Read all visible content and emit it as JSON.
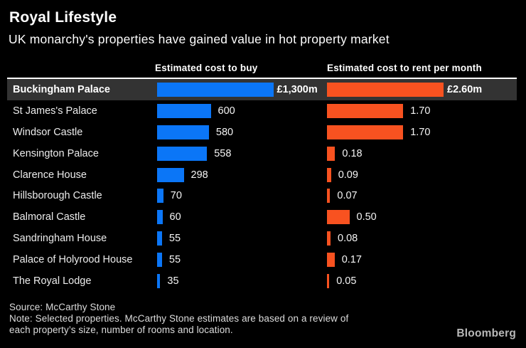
{
  "title": "Royal Lifestyle",
  "subtitle": "UK monarchy's properties have gained value in hot property market",
  "columns": {
    "buy": "Estimated cost to buy",
    "rent": "Estimated cost to rent per month"
  },
  "chart_data": {
    "type": "bar",
    "orientation": "horizontal",
    "title": "Royal Lifestyle",
    "subtitle": "UK monarchy's properties have gained value in hot property market",
    "categories": [
      "Buckingham Palace",
      "St James's Palace",
      "Windsor Castle",
      "Kensington Palace",
      "Clarence House",
      "Hillsborough Castle",
      "Balmoral Castle",
      "Sandringham House",
      "Palace of Holyrood House",
      "The Royal Lodge"
    ],
    "highlighted_category": "Buckingham Palace",
    "grid": false,
    "legend_position": "none",
    "series": [
      {
        "name": "Estimated cost to buy",
        "unit": "£m",
        "color": "#0b76f7",
        "axis_range": [
          0,
          1300
        ],
        "values": [
          1300,
          600,
          580,
          558,
          298,
          70,
          60,
          55,
          55,
          35
        ],
        "labels": [
          "£1,300m",
          "600",
          "580",
          "558",
          "298",
          "70",
          "60",
          "55",
          "55",
          "35"
        ]
      },
      {
        "name": "Estimated cost to rent per month",
        "unit": "£m",
        "color": "#f85220",
        "axis_range": [
          0,
          2.6
        ],
        "values": [
          2.6,
          1.7,
          1.7,
          0.18,
          0.09,
          0.07,
          0.5,
          0.08,
          0.17,
          0.05
        ],
        "labels": [
          "£2.60m",
          "1.70",
          "1.70",
          "0.18",
          "0.09",
          "0.07",
          "0.50",
          "0.08",
          "0.17",
          "0.05"
        ]
      }
    ]
  },
  "rows": [
    {
      "name": "Buckingham Palace",
      "buy": 1300,
      "rent": 2.6,
      "buy_label": "£1,300m",
      "rent_label": "£2.60m",
      "highlighted": true
    },
    {
      "name": "St James's Palace",
      "buy": 600,
      "rent": 1.7,
      "buy_label": "600",
      "rent_label": "1.70",
      "highlighted": false
    },
    {
      "name": "Windsor Castle",
      "buy": 580,
      "rent": 1.7,
      "buy_label": "580",
      "rent_label": "1.70",
      "highlighted": false
    },
    {
      "name": "Kensington Palace",
      "buy": 558,
      "rent": 0.18,
      "buy_label": "558",
      "rent_label": "0.18",
      "highlighted": false
    },
    {
      "name": "Clarence House",
      "buy": 298,
      "rent": 0.09,
      "buy_label": "298",
      "rent_label": "0.09",
      "highlighted": false
    },
    {
      "name": "Hillsborough Castle",
      "buy": 70,
      "rent": 0.07,
      "buy_label": "70",
      "rent_label": "0.07",
      "highlighted": false
    },
    {
      "name": "Balmoral Castle",
      "buy": 60,
      "rent": 0.5,
      "buy_label": "60",
      "rent_label": "0.50",
      "highlighted": false
    },
    {
      "name": "Sandringham House",
      "buy": 55,
      "rent": 0.08,
      "buy_label": "55",
      "rent_label": "0.08",
      "highlighted": false
    },
    {
      "name": "Palace of Holyrood House",
      "buy": 55,
      "rent": 0.17,
      "buy_label": "55",
      "rent_label": "0.17",
      "highlighted": false
    },
    {
      "name": "The Royal Lodge",
      "buy": 35,
      "rent": 0.05,
      "buy_label": "35",
      "rent_label": "0.05",
      "highlighted": false
    }
  ],
  "footer": {
    "source": "Source: McCarthy Stone",
    "note1": "Note: Selected properties. McCarthy Stone estimates are based on a review of",
    "note2": "each property’s size, number of rooms and location.",
    "brand": "Bloomberg"
  },
  "colors": {
    "background": "#000000",
    "buy_bar": "#0b76f7",
    "rent_bar": "#f85220",
    "highlight_row_bg": "#333333",
    "highlight_rule": "#ffffff",
    "text": "#ffffff",
    "footer_text": "#dcdcdc",
    "brand_text": "#b8b8b8"
  }
}
